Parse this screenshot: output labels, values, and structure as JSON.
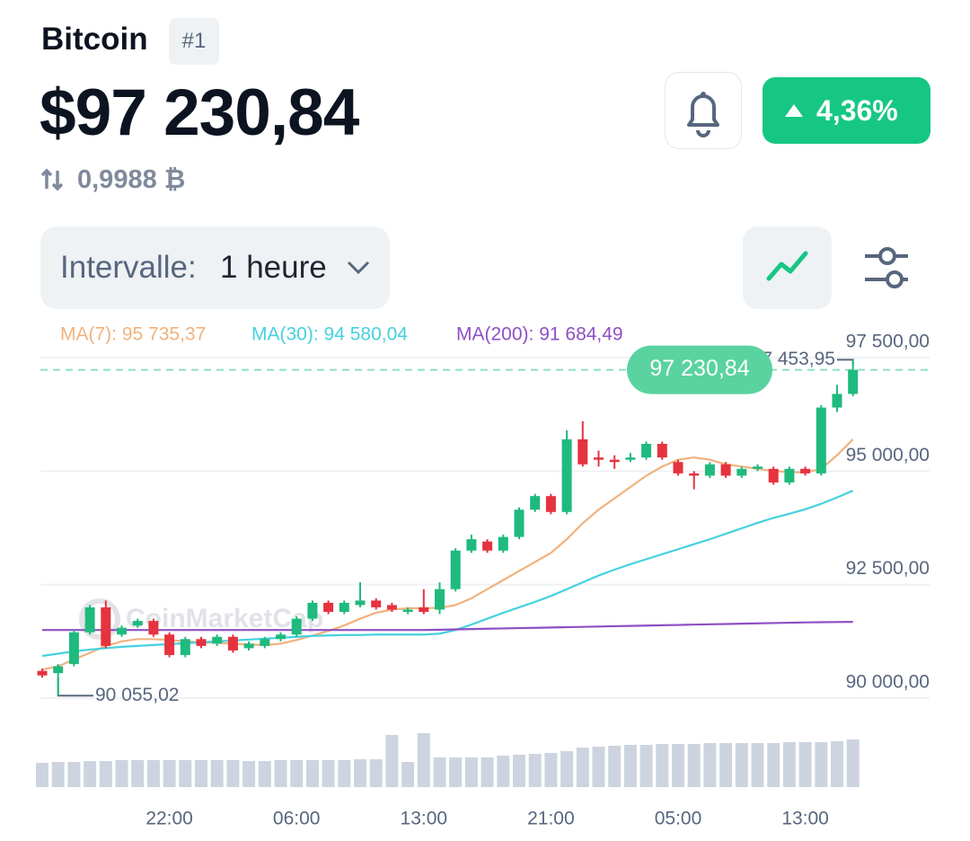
{
  "header": {
    "title": "Bitcoin",
    "rank": "#1",
    "price": "$97 230,84",
    "change": "4,36%",
    "btc_amount": "0,9988 ₿"
  },
  "controls": {
    "interval_label": "Intervalle:",
    "interval_value": "1 heure"
  },
  "chart_data": {
    "type": "candlestick",
    "categories": [
      null,
      null,
      null,
      null,
      null,
      null,
      null,
      null,
      "22:00",
      null,
      null,
      null,
      null,
      null,
      null,
      null,
      "06:00",
      null,
      null,
      null,
      null,
      null,
      null,
      null,
      "13:00",
      null,
      null,
      null,
      null,
      null,
      null,
      null,
      "21:00",
      null,
      null,
      null,
      null,
      null,
      null,
      null,
      "05:00",
      null,
      null,
      null,
      null,
      null,
      null,
      null,
      "13:00",
      null,
      null,
      null
    ],
    "open": [
      90600,
      90550,
      90750,
      91450,
      92000,
      91400,
      91600,
      91700,
      91400,
      90950,
      91300,
      91200,
      91350,
      91100,
      91150,
      91300,
      91400,
      91750,
      92100,
      91900,
      92050,
      92150,
      92050,
      91900,
      92000,
      91950,
      92400,
      93250,
      93450,
      93250,
      93550,
      94150,
      94450,
      94100,
      95700,
      95300,
      95250,
      95250,
      95300,
      95600,
      95200,
      94950,
      94900,
      95150,
      94900,
      95050,
      95050,
      94750,
      95050,
      94950,
      96400,
      96700
    ],
    "close": [
      90500,
      90700,
      91450,
      92000,
      91150,
      91550,
      91700,
      91400,
      90950,
      91300,
      91150,
      91350,
      91050,
      91200,
      91300,
      91400,
      91750,
      92100,
      91900,
      92100,
      92150,
      92000,
      91950,
      91950,
      91900,
      92400,
      93250,
      93500,
      93250,
      93550,
      94150,
      94450,
      94100,
      95700,
      95150,
      95250,
      95200,
      95300,
      95600,
      95300,
      94950,
      94900,
      95150,
      94900,
      95050,
      95100,
      94750,
      95050,
      94950,
      96400,
      96700,
      97230.84
    ],
    "high": [
      90650,
      90750,
      91500,
      92050,
      92150,
      91600,
      91750,
      91750,
      91450,
      91350,
      91350,
      91400,
      91400,
      91250,
      91350,
      91450,
      91800,
      92150,
      92150,
      92150,
      92550,
      92200,
      92100,
      92000,
      92400,
      92550,
      93300,
      93600,
      93500,
      93600,
      94200,
      94500,
      94500,
      95900,
      96100,
      95450,
      95350,
      95400,
      95650,
      95650,
      95250,
      95000,
      95200,
      95200,
      95100,
      95150,
      95100,
      95100,
      95100,
      96450,
      96900,
      97453.95
    ],
    "low": [
      90450,
      90055.02,
      90700,
      91400,
      91100,
      91350,
      91550,
      91350,
      90900,
      90900,
      91100,
      91150,
      91000,
      91050,
      91100,
      91250,
      91350,
      91700,
      91850,
      91850,
      92000,
      91950,
      91900,
      91850,
      91850,
      91850,
      92350,
      93200,
      93200,
      93200,
      93500,
      94100,
      94050,
      94050,
      95100,
      95100,
      95050,
      95200,
      95250,
      95250,
      94900,
      94600,
      94850,
      94850,
      94850,
      95000,
      94700,
      94700,
      94900,
      94900,
      96300,
      96650
    ],
    "up_color": "#1fba7d",
    "down_color": "#e5333f",
    "ylim": [
      90000,
      97500
    ],
    "yticks": [
      {
        "value": 90000,
        "label": "90 000,00"
      },
      {
        "value": 92500,
        "label": "92 500,00"
      },
      {
        "value": 95000,
        "label": "95 000,00"
      },
      {
        "value": 97500,
        "label": "97 500,00"
      }
    ],
    "grid": true,
    "series": [
      {
        "name": "MA(7): 95 735,37",
        "color": "#f0b27e",
        "values": [
          90630,
          90700,
          90850,
          91000,
          91150,
          91250,
          91300,
          91300,
          91280,
          91250,
          91230,
          91220,
          91200,
          91180,
          91170,
          91200,
          91280,
          91380,
          91480,
          91600,
          91750,
          91880,
          91950,
          91980,
          91980,
          91990,
          92050,
          92200,
          92400,
          92600,
          92800,
          93000,
          93200,
          93500,
          93850,
          94150,
          94400,
          94650,
          94900,
          95100,
          95250,
          95300,
          95250,
          95150,
          95100,
          95050,
          95000,
          94980,
          94970,
          95050,
          95350,
          95700
        ]
      },
      {
        "name": "MA(30): 94 580,04",
        "color": "#45d1df",
        "values": [
          90930,
          90980,
          91030,
          91070,
          91100,
          91130,
          91150,
          91170,
          91190,
          91210,
          91230,
          91250,
          91270,
          91290,
          91310,
          91330,
          91350,
          91370,
          91380,
          91390,
          91390,
          91400,
          91400,
          91400,
          91400,
          91420,
          91500,
          91620,
          91750,
          91880,
          92000,
          92120,
          92250,
          92400,
          92550,
          92700,
          92830,
          92950,
          93060,
          93170,
          93280,
          93390,
          93500,
          93620,
          93740,
          93860,
          93970,
          94060,
          94160,
          94280,
          94420,
          94570
        ]
      },
      {
        "name": "MA(200): 91 684,49",
        "color": "#8e4fc4",
        "values": [
          91500,
          91500,
          91500,
          91500,
          91500,
          91500,
          91500,
          91500,
          91500,
          91500,
          91500,
          91500,
          91500,
          91500,
          91500,
          91500,
          91500,
          91500,
          91500,
          91500,
          91500,
          91500,
          91500,
          91500,
          91500,
          91507,
          91514,
          91521,
          91528,
          91535,
          91542,
          91549,
          91556,
          91563,
          91570,
          91577,
          91584,
          91591,
          91598,
          91605,
          91612,
          91619,
          91626,
          91633,
          91640,
          91647,
          91654,
          91661,
          91668,
          91672,
          91676,
          91680
        ]
      }
    ],
    "volume": {
      "color": "#cdd4e0",
      "vlim": [
        0,
        60
      ],
      "values": [
        27,
        28,
        28,
        29,
        29,
        30,
        30,
        30,
        30,
        30,
        30,
        30,
        30,
        29,
        29,
        30,
        30,
        30,
        30,
        30,
        31,
        31,
        58,
        28,
        60,
        33,
        33,
        33,
        33,
        35,
        36,
        37,
        38,
        40,
        44,
        45,
        46,
        47,
        47,
        48,
        48,
        48,
        49,
        49,
        49,
        49,
        49,
        50,
        50,
        50,
        51,
        53
      ]
    },
    "current_price": {
      "value": 97230.84,
      "label": "97 230,84"
    },
    "high_label": {
      "value": 97453.95,
      "label": "97 453,95"
    },
    "low_label": {
      "value": 90055.02,
      "label": "90 055,02"
    },
    "watermark": "CoinMarketCap"
  }
}
